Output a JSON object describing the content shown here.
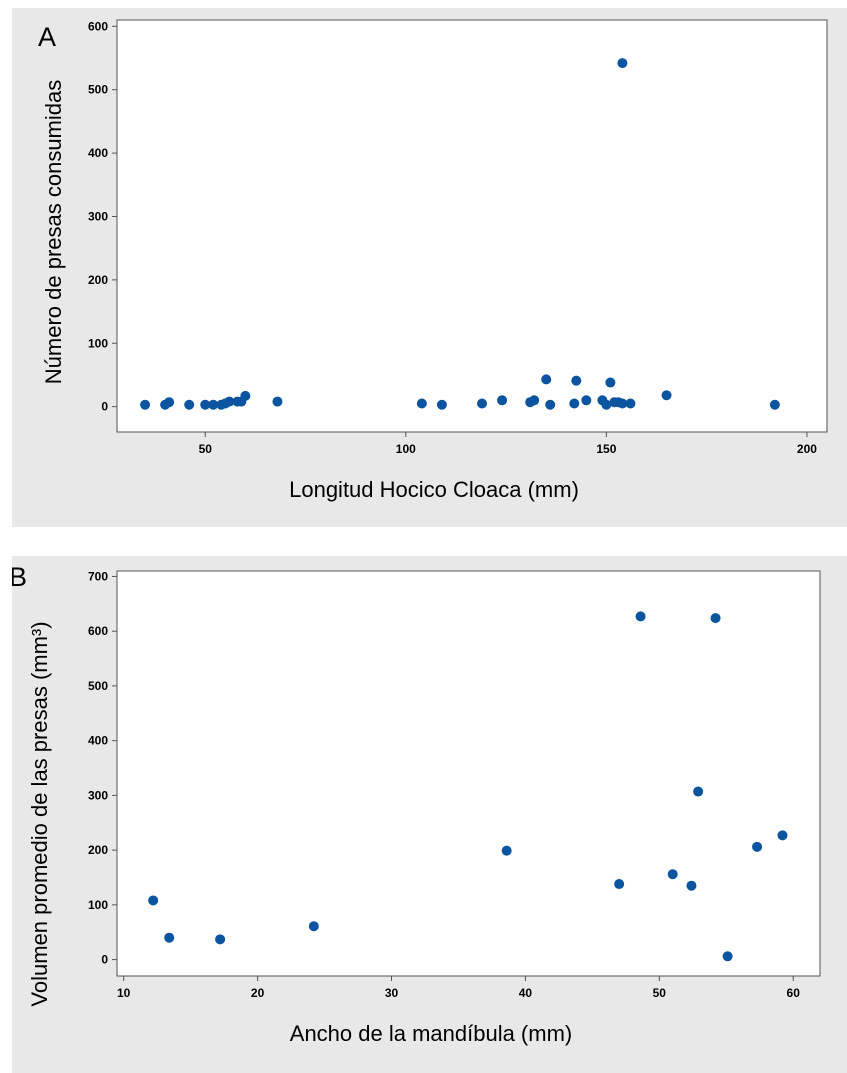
{
  "colors": {
    "background": "#e8e8e8",
    "plot_area": "#ffffff",
    "point": "#0b54a0",
    "axis": "#555555"
  },
  "chart_data": [
    {
      "panel_label": "A",
      "type": "scatter",
      "xlabel": "Longitud Hocico Cloaca (mm)",
      "ylabel": "Número de presas consumidas",
      "xlim": [
        28,
        205
      ],
      "ylim": [
        -40,
        610
      ],
      "xticks": [
        50,
        100,
        150,
        200
      ],
      "yticks": [
        0,
        100,
        200,
        300,
        400,
        500,
        600
      ],
      "grid": false,
      "points": [
        {
          "x": 35,
          "y": 3
        },
        {
          "x": 40,
          "y": 3
        },
        {
          "x": 41,
          "y": 7
        },
        {
          "x": 46,
          "y": 3
        },
        {
          "x": 50,
          "y": 3
        },
        {
          "x": 52,
          "y": 3
        },
        {
          "x": 54,
          "y": 3
        },
        {
          "x": 55,
          "y": 5
        },
        {
          "x": 56,
          "y": 8
        },
        {
          "x": 58,
          "y": 8
        },
        {
          "x": 59,
          "y": 8
        },
        {
          "x": 60,
          "y": 17
        },
        {
          "x": 68,
          "y": 8
        },
        {
          "x": 104,
          "y": 5
        },
        {
          "x": 109,
          "y": 3
        },
        {
          "x": 119,
          "y": 5
        },
        {
          "x": 124,
          "y": 10
        },
        {
          "x": 131,
          "y": 7
        },
        {
          "x": 132,
          "y": 10
        },
        {
          "x": 135,
          "y": 43
        },
        {
          "x": 136,
          "y": 3
        },
        {
          "x": 142,
          "y": 5
        },
        {
          "x": 142.5,
          "y": 41
        },
        {
          "x": 145,
          "y": 10
        },
        {
          "x": 149,
          "y": 10
        },
        {
          "x": 150,
          "y": 3
        },
        {
          "x": 151,
          "y": 38
        },
        {
          "x": 152,
          "y": 7
        },
        {
          "x": 153,
          "y": 7
        },
        {
          "x": 154,
          "y": 5
        },
        {
          "x": 154,
          "y": 542
        },
        {
          "x": 156,
          "y": 5
        },
        {
          "x": 165,
          "y": 18
        },
        {
          "x": 192,
          "y": 3
        }
      ]
    },
    {
      "panel_label": "B",
      "type": "scatter",
      "xlabel": "Ancho de la mandíbula (mm)",
      "ylabel": "Volumen promedio de las presas (mm³)",
      "xlim": [
        9.5,
        62
      ],
      "ylim": [
        -30,
        710
      ],
      "xticks": [
        10,
        20,
        30,
        40,
        50,
        60
      ],
      "yticks": [
        0,
        100,
        200,
        300,
        400,
        500,
        600,
        700
      ],
      "grid": false,
      "points": [
        {
          "x": 12.2,
          "y": 108
        },
        {
          "x": 13.4,
          "y": 40
        },
        {
          "x": 17.2,
          "y": 37
        },
        {
          "x": 24.2,
          "y": 61
        },
        {
          "x": 38.6,
          "y": 199
        },
        {
          "x": 47.0,
          "y": 138
        },
        {
          "x": 48.6,
          "y": 627
        },
        {
          "x": 51.0,
          "y": 156
        },
        {
          "x": 52.4,
          "y": 135
        },
        {
          "x": 52.9,
          "y": 307
        },
        {
          "x": 54.2,
          "y": 624
        },
        {
          "x": 55.1,
          "y": 6
        },
        {
          "x": 57.3,
          "y": 206
        },
        {
          "x": 59.2,
          "y": 227
        }
      ]
    }
  ]
}
